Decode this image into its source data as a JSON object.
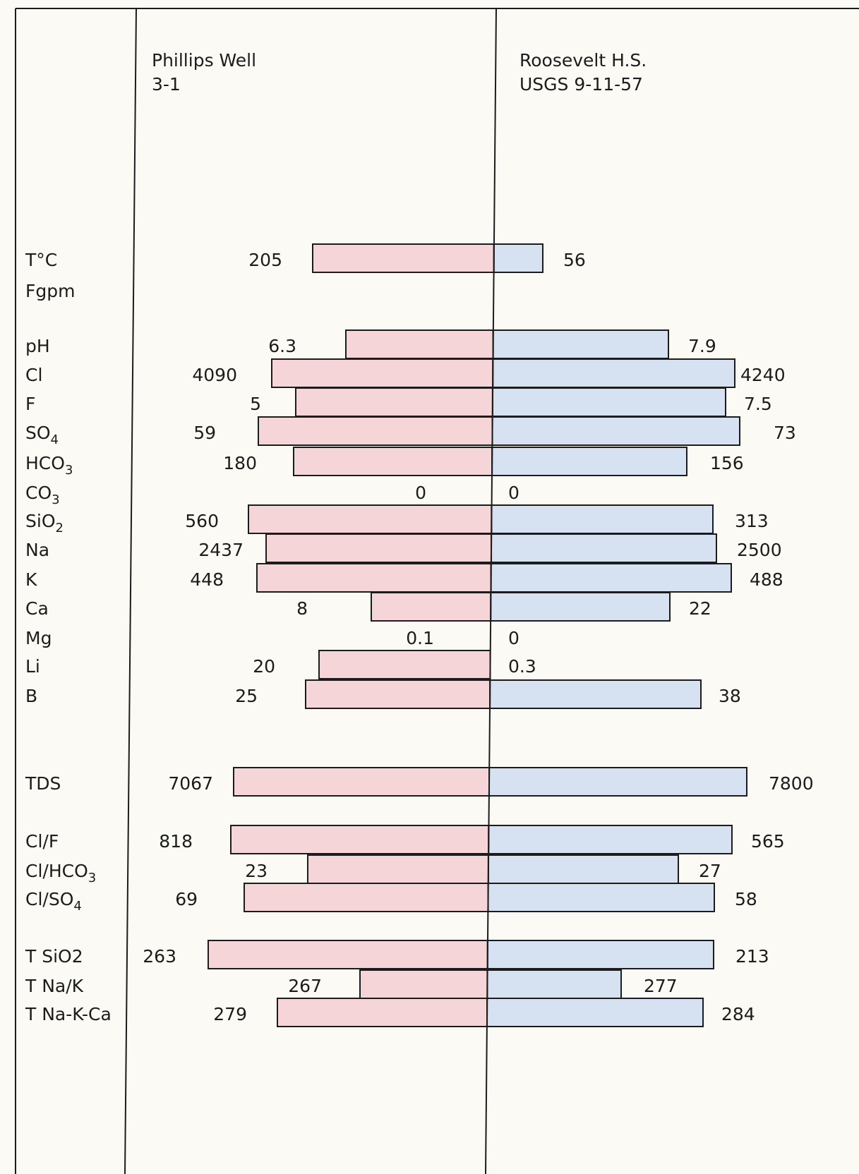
{
  "colors": {
    "paper": "#fbfaf4",
    "ink": "#1c1c1c",
    "left_fill": "#f6d5d9",
    "right_fill": "#d6e2f2"
  },
  "chart_data": {
    "type": "bar",
    "orientation": "horizontal",
    "layout": "back-to-back",
    "columns": {
      "left": [
        "Phillips Well",
        "3-1"
      ],
      "right": [
        "Roosevelt H.S.",
        "USGS 9-11-57"
      ]
    },
    "categories": [
      "T°C",
      "Fgpm",
      "pH",
      "Cl",
      "F",
      "SO4",
      "HCO3",
      "CO3",
      "SiO2",
      "Na",
      "K",
      "Ca",
      "Mg",
      "Li",
      "B",
      "TDS",
      "Cl/F",
      "Cl/HCO3",
      "Cl/SO4",
      "T SiO2",
      "T Na/K",
      "T Na-K-Ca"
    ],
    "series": [
      {
        "name": "Phillips Well 3-1",
        "side": "left",
        "labels": [
          "205",
          "",
          "6.3",
          "4090",
          "5",
          "59",
          "180",
          "0",
          "560",
          "2437",
          "448",
          "8",
          "0.1",
          "20",
          "25",
          "7067",
          "818",
          "23",
          "69",
          "263",
          "267",
          "279"
        ],
        "values": [
          205,
          null,
          6.3,
          4090,
          5,
          59,
          180,
          0,
          560,
          2437,
          448,
          8,
          0.1,
          20,
          25,
          7067,
          818,
          23,
          69,
          263,
          267,
          279
        ]
      },
      {
        "name": "Roosevelt H.S. USGS 9-11-57",
        "side": "right",
        "labels": [
          "56",
          "",
          "7.9",
          "4240",
          "7.5",
          "73",
          "156",
          "0",
          "313",
          "2500",
          "488",
          "22",
          "0",
          "0.3",
          "38",
          "7800",
          "565",
          "27",
          "58",
          "213",
          "277",
          "284"
        ],
        "values": [
          56,
          null,
          7.9,
          4240,
          7.5,
          73,
          156,
          0,
          313,
          2500,
          488,
          22,
          0,
          0.3,
          38,
          7800,
          565,
          27,
          58,
          213,
          277,
          284
        ]
      }
    ],
    "scale": "arbitrary per-row scale as drawn in original"
  }
}
